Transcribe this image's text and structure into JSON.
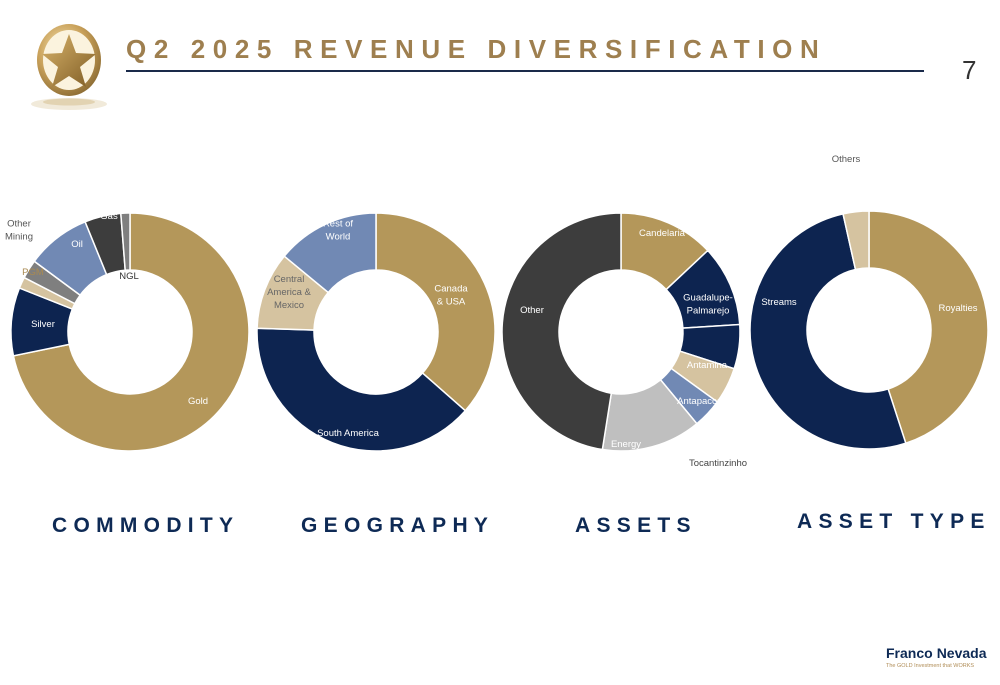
{
  "header": {
    "title": "Q2 2025 REVENUE DIVERSIFICATION",
    "page_number": "7"
  },
  "footer": {
    "brand_left": "Franco",
    "brand_right": "Nevada",
    "tagline": "The GOLD Investment that WORKS"
  },
  "colors": {
    "gold": "#b4975a",
    "navy": "#0d2450",
    "steel_blue": "#7189b4",
    "sand": "#d5c3a0",
    "gray": "#7f7f7f",
    "charcoal": "#3d3d3d",
    "light_gray": "#bfbfbf",
    "title_gold": "#9e7f4f",
    "title_navy": "#0e2a55"
  },
  "chart_data": [
    {
      "type": "pie",
      "title": "COMMODITY",
      "donut": true,
      "slices": [
        {
          "label": "Gold",
          "value": 70.0,
          "color": "#b4975a",
          "label_color": "#ffffff"
        },
        {
          "label": "Silver",
          "value": 9.0,
          "color": "#0d2450",
          "label_color": "#ffffff"
        },
        {
          "label": "PGM",
          "value": 1.5,
          "color": "#d5c3a0",
          "label_color": "#a98a52"
        },
        {
          "label": "Other Mining",
          "value": 2.5,
          "color": "#7f7f7f",
          "label_color": "#555555"
        },
        {
          "label": "Oil",
          "value": 8.5,
          "color": "#7189b4",
          "label_color": "#ffffff"
        },
        {
          "label": "Gas",
          "value": 4.8,
          "color": "#3d3d3d",
          "label_color": "#ffffff"
        },
        {
          "label": "NGL",
          "value": 1.2,
          "color": "#7f7f7f",
          "label_color": "#333333"
        }
      ]
    },
    {
      "type": "pie",
      "title": "GEOGRAPHY",
      "donut": true,
      "slices": [
        {
          "label": "Canada & USA",
          "value": 36.5,
          "color": "#b4975a",
          "label_color": "#ffffff"
        },
        {
          "label": "South America",
          "value": 39.0,
          "color": "#0d2450",
          "label_color": "#ffffff"
        },
        {
          "label": "Central America & Mexico",
          "value": 10.5,
          "color": "#d5c3a0",
          "label_color": "#666666"
        },
        {
          "label": "Rest of World",
          "value": 14.0,
          "color": "#7189b4",
          "label_color": "#ffffff"
        }
      ]
    },
    {
      "type": "pie",
      "title": "ASSETS",
      "donut": true,
      "slices": [
        {
          "label": "Candelaria",
          "value": 13.0,
          "color": "#b4975a",
          "label_color": "#ffffff"
        },
        {
          "label": "Guadalupe-Palmarejo",
          "value": 11.0,
          "color": "#0d2450",
          "label_color": "#ffffff"
        },
        {
          "label": "Antamina",
          "value": 6.0,
          "color": "#0d2450",
          "label_color": "#ffffff"
        },
        {
          "label": "Antapaccay",
          "value": 5.0,
          "color": "#d5c3a0",
          "label_color": "#ffffff"
        },
        {
          "label": "Tocantinzinho",
          "value": 4.0,
          "color": "#7189b4",
          "label_color": "#444444"
        },
        {
          "label": "Energy",
          "value": 13.5,
          "color": "#bfbfbf",
          "label_color": "#ffffff"
        },
        {
          "label": "Other",
          "value": 47.5,
          "color": "#3d3d3d",
          "label_color": "#ffffff"
        }
      ]
    },
    {
      "type": "pie",
      "title": "ASSET TYPE",
      "donut": true,
      "slices": [
        {
          "label": "Royalties",
          "value": 45.0,
          "color": "#b4975a",
          "label_color": "#ffffff"
        },
        {
          "label": "Streams",
          "value": 51.5,
          "color": "#0d2450",
          "label_color": "#ffffff"
        },
        {
          "label": "Others",
          "value": 3.5,
          "color": "#d5c3a0",
          "label_color": "#555555"
        }
      ]
    }
  ]
}
